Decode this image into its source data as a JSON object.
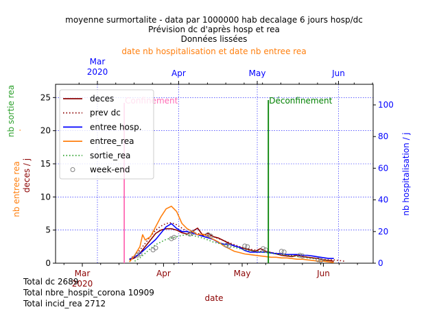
{
  "chart_data": {
    "type": "line",
    "title_lines": [
      "moyenne surmortalite - data par 1000000 hab decalage 6 jours hosp/dc",
      "Prévision dc d'après hosp et rea",
      "Données lissées"
    ],
    "top_axis_label": "date nb hospitalisation et date nb entree rea",
    "top_ticks": [
      {
        "label": "Mar",
        "sub": "2020",
        "day": 0
      },
      {
        "label": "Apr",
        "sub": "",
        "day": 31
      },
      {
        "label": "May",
        "sub": "",
        "day": 61
      },
      {
        "label": "Jun",
        "sub": "",
        "day": 92
      }
    ],
    "bottom_ticks": [
      {
        "label": "Mar",
        "sub": "2020",
        "day": 0
      },
      {
        "label": "Apr",
        "sub": "",
        "day": 31
      },
      {
        "label": "May",
        "sub": "",
        "day": 61
      },
      {
        "label": "Jun",
        "sub": "",
        "day": 92
      }
    ],
    "xlabel": "date",
    "ylabel_left_lines": [
      "nb sortie rea",
      "nb entree rea",
      "deces / j"
    ],
    "ylabel_right": "nb hospitalisation / j",
    "ylim_left": [
      0,
      27
    ],
    "yticks_left": [
      0,
      5,
      10,
      15,
      20,
      25
    ],
    "ylim_right": [
      0,
      113
    ],
    "yticks_right": [
      0,
      20,
      40,
      60,
      80,
      100
    ],
    "legend": [
      {
        "label": "deces",
        "color": "#8b0000",
        "style": "solid"
      },
      {
        "label": "prev dc",
        "color": "#8b0000",
        "style": "dotted"
      },
      {
        "label": "entree hosp.",
        "color": "#0000ff",
        "style": "solid"
      },
      {
        "label": "entree_rea",
        "color": "#ff7f0e",
        "style": "solid"
      },
      {
        "label": "sortie_rea",
        "color": "#2ca02c",
        "style": "dotted"
      },
      {
        "label": "week-end",
        "color": "#808080",
        "style": "circle"
      }
    ],
    "legend_location": "top-left",
    "annotations": [
      {
        "text": "Confinement",
        "day": 16,
        "color": "#ff69b4"
      },
      {
        "text": "Déconfinement",
        "day": 71,
        "color": "#008000"
      }
    ],
    "series": [
      {
        "name": "deces",
        "axis": "left",
        "color": "#8b0000",
        "style": "solid",
        "x": [
          18,
          20,
          22,
          24,
          26,
          28,
          30,
          32,
          34,
          36,
          38,
          40,
          42,
          44,
          46,
          48,
          50,
          52,
          54,
          56,
          58,
          60,
          62,
          64,
          66,
          68,
          70,
          72,
          74,
          76,
          78,
          80,
          82,
          84,
          86,
          88,
          90,
          92,
          94,
          96
        ],
        "y": [
          0.5,
          0.8,
          1.5,
          2.5,
          3.5,
          4.5,
          5.0,
          5.2,
          5.2,
          5.0,
          4.6,
          4.4,
          4.8,
          5.3,
          4.2,
          4.5,
          4.0,
          3.8,
          3.4,
          3.0,
          2.6,
          2.4,
          2.2,
          2.0,
          1.8,
          2.2,
          1.8,
          1.6,
          1.4,
          1.2,
          1.1,
          1.0,
          1.2,
          1.0,
          0.9,
          0.8,
          0.7,
          0.5,
          0.4,
          0.3
        ]
      },
      {
        "name": "prev dc",
        "axis": "left",
        "color": "#8b0000",
        "style": "dotted",
        "x": [
          18,
          20,
          22,
          24,
          26,
          28,
          30,
          32,
          34,
          36,
          38,
          40,
          42,
          44,
          46,
          48,
          50,
          52,
          54,
          56,
          58,
          60,
          62,
          64,
          66,
          68,
          70,
          72,
          74,
          76,
          78,
          80,
          82,
          84,
          86,
          88,
          90,
          92,
          94,
          96,
          98,
          100
        ],
        "y": [
          0.6,
          1.2,
          2.0,
          3.0,
          4.0,
          5.0,
          5.6,
          6.0,
          6.1,
          5.8,
          5.3,
          4.8,
          4.6,
          4.5,
          4.3,
          4.2,
          4.0,
          3.7,
          3.4,
          3.1,
          2.8,
          2.5,
          2.3,
          2.1,
          2.0,
          1.8,
          1.7,
          1.6,
          1.5,
          1.4,
          1.3,
          1.2,
          1.1,
          1.0,
          0.9,
          0.8,
          0.7,
          0.6,
          0.5,
          0.5,
          0.4,
          0.3
        ]
      },
      {
        "name": "entree hosp.",
        "axis": "right",
        "color": "#0000ff",
        "style": "solid",
        "x": [
          18,
          20,
          22,
          24,
          26,
          28,
          30,
          32,
          34,
          36,
          38,
          40,
          42,
          44,
          46,
          48,
          50,
          52,
          54,
          56,
          58,
          60,
          62,
          64,
          66,
          68,
          70,
          72,
          74,
          76,
          78,
          80,
          82,
          84,
          86,
          88,
          90,
          92,
          94,
          96
        ],
        "y": [
          2.5,
          4,
          6,
          9,
          12,
          15,
          19,
          23,
          25,
          22,
          20,
          20,
          19,
          18,
          17,
          16,
          15,
          13,
          12,
          12,
          11,
          10,
          8,
          7,
          7,
          7,
          7,
          6.5,
          6,
          6,
          5.5,
          5.5,
          5.5,
          5,
          5,
          4.5,
          4,
          3.5,
          3,
          3
        ]
      },
      {
        "name": "entree_rea",
        "axis": "left",
        "color": "#ff7f0e",
        "style": "solid",
        "x": [
          18,
          20,
          22,
          23,
          24,
          26,
          28,
          30,
          32,
          34,
          36,
          38,
          40,
          42,
          44,
          46,
          48,
          50,
          52,
          54,
          56,
          58,
          60,
          62,
          64,
          66,
          68,
          70,
          72,
          74,
          76,
          78,
          80,
          82,
          84,
          86,
          88,
          90,
          92,
          94,
          96
        ],
        "y": [
          0.2,
          1.2,
          2.5,
          4.3,
          3.5,
          4.0,
          5.5,
          7.0,
          8.2,
          8.6,
          7.8,
          6.0,
          5.2,
          4.8,
          4.3,
          4.4,
          4.0,
          3.6,
          3.2,
          2.6,
          2.2,
          1.8,
          1.6,
          1.4,
          1.3,
          1.2,
          1.1,
          1.0,
          0.9,
          0.9,
          0.8,
          0.8,
          0.7,
          0.6,
          0.6,
          0.5,
          0.4,
          0.3,
          0.3,
          0.2,
          0.1
        ]
      },
      {
        "name": "sortie_rea",
        "axis": "left",
        "color": "#2ca02c",
        "style": "dotted",
        "x": [
          20,
          22,
          24,
          26,
          28,
          30,
          32,
          34,
          36,
          38,
          40,
          42,
          44,
          46,
          48,
          50,
          52,
          54,
          56,
          58,
          60,
          62,
          64,
          66,
          68,
          70,
          72,
          74,
          76,
          78,
          80,
          82,
          84,
          86,
          88,
          90,
          92,
          94
        ],
        "y": [
          0.3,
          0.8,
          1.5,
          2.2,
          2.8,
          3.2,
          3.6,
          3.8,
          4.0,
          4.2,
          4.3,
          4.2,
          4.0,
          3.8,
          3.5,
          3.2,
          3.0,
          2.8,
          2.6,
          2.4,
          2.2,
          2.0,
          1.9,
          1.8,
          1.7,
          1.6,
          1.5,
          1.4,
          1.3,
          1.2,
          1.1,
          1.0,
          0.9,
          0.8,
          0.7,
          0.6,
          0.5,
          0.4
        ]
      }
    ],
    "weekend_points": {
      "axis": "left",
      "x": [
        21,
        22,
        27,
        28,
        34,
        35,
        41,
        42,
        48,
        49,
        55,
        56,
        62,
        63,
        69,
        70,
        76,
        77,
        83,
        84,
        90,
        91
      ],
      "y": [
        1.2,
        1.4,
        2.0,
        2.3,
        3.7,
        3.9,
        4.4,
        4.6,
        4.3,
        4.1,
        2.7,
        2.6,
        2.6,
        2.5,
        2.2,
        2.0,
        1.8,
        1.7,
        1.2,
        1.1,
        0.5,
        0.4
      ]
    },
    "totals": [
      "Total dc 2689",
      "Total nbre_hospit_corona 10909",
      "Total incid_rea 2712"
    ]
  }
}
